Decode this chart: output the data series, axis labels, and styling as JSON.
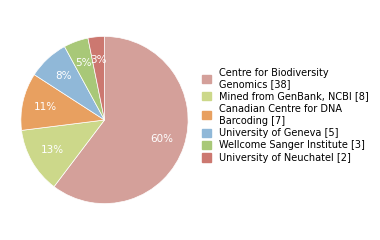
{
  "labels": [
    "Centre for Biodiversity\nGenomics [38]",
    "Mined from GenBank, NCBI [8]",
    "Canadian Centre for DNA\nBarcoding [7]",
    "University of Geneva [5]",
    "Wellcome Sanger Institute [3]",
    "University of Neuchatel [2]"
  ],
  "values": [
    38,
    8,
    7,
    5,
    3,
    2
  ],
  "colors": [
    "#d4a09a",
    "#ccd88a",
    "#e8a060",
    "#90b8d8",
    "#a8c878",
    "#cc7870"
  ],
  "startangle": 90,
  "counterclock": false,
  "legend_fontsize": 7,
  "autopct_fontsize": 7.5
}
